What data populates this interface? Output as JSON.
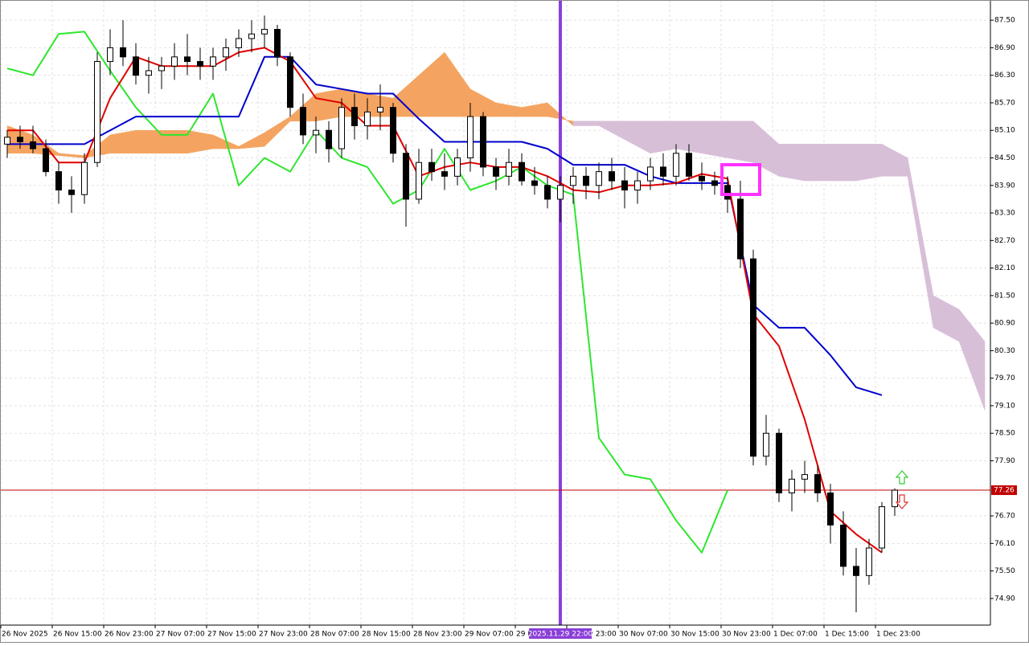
{
  "chart_data": {
    "type": "candlestick",
    "xlim": [
      6.875,
      160.875
    ],
    "ylim": [
      74.32,
      87.94
    ],
    "grid": true,
    "yticks": [
      {
        "value": 87.5,
        "label": "87.50"
      },
      {
        "value": 86.9,
        "label": "86.90"
      },
      {
        "value": 86.3,
        "label": "86.30"
      },
      {
        "value": 85.7,
        "label": "85.70"
      },
      {
        "value": 85.1,
        "label": "85.10"
      },
      {
        "value": 84.5,
        "label": "84.50"
      },
      {
        "value": 83.9,
        "label": "83.90"
      },
      {
        "value": 83.3,
        "label": "83.30"
      },
      {
        "value": 82.7,
        "label": "82.70"
      },
      {
        "value": 82.1,
        "label": "82.10"
      },
      {
        "value": 81.5,
        "label": "81.50"
      },
      {
        "value": 80.9,
        "label": "80.90"
      },
      {
        "value": 80.3,
        "label": "80.30"
      },
      {
        "value": 79.7,
        "label": "79.70"
      },
      {
        "value": 79.1,
        "label": "79.10"
      },
      {
        "value": 78.5,
        "label": "78.50"
      },
      {
        "value": 77.9,
        "label": "77.90"
      },
      {
        "value": 76.7,
        "label": "76.70"
      },
      {
        "value": 76.1,
        "label": "76.10"
      },
      {
        "value": 75.5,
        "label": "75.50"
      },
      {
        "value": 74.9,
        "label": "74.90"
      }
    ],
    "xticks": [
      {
        "value": 7,
        "label": "26 Nov 2025"
      },
      {
        "value": 15,
        "label": "26 Nov 15:00"
      },
      {
        "value": 23,
        "label": "26 Nov 23:00"
      },
      {
        "value": 31,
        "label": "27 Nov 07:00"
      },
      {
        "value": 39,
        "label": "27 Nov 15:00"
      },
      {
        "value": 47,
        "label": "27 Nov 23:00"
      },
      {
        "value": 55,
        "label": "28 Nov 07:00"
      },
      {
        "value": 63,
        "label": "28 Nov 15:00"
      },
      {
        "value": 71,
        "label": "28 Nov 23:00"
      },
      {
        "value": 79,
        "label": "29 Nov 07:00"
      },
      {
        "value": 87,
        "label": "29 Nov 15:00"
      },
      {
        "value": 95,
        "label": "29 Nov 23:00"
      },
      {
        "value": 103,
        "label": "30 Nov 07:00"
      },
      {
        "value": 111,
        "label": "30 Nov 15:00"
      },
      {
        "value": 119,
        "label": "30 Nov 23:00"
      },
      {
        "value": 127,
        "label": "1 Dec 07:00"
      },
      {
        "value": 135,
        "label": "1 Dec 15:00"
      },
      {
        "value": 143,
        "label": "1 Dec 23:00"
      }
    ],
    "up_color": "#ffffff",
    "down_color": "#000000",
    "x": [
      8,
      10,
      12,
      14,
      16,
      18,
      20,
      22,
      24,
      26,
      28,
      30,
      32,
      34,
      36,
      38,
      40,
      42,
      44,
      46,
      48,
      50,
      52,
      54,
      56,
      58,
      60,
      62,
      64,
      66,
      68,
      70,
      72,
      74,
      76,
      78,
      80,
      82,
      84,
      86,
      88,
      90,
      92,
      94,
      96,
      98,
      100,
      102,
      104,
      106,
      108,
      110,
      112,
      114,
      116,
      118,
      120,
      122,
      124,
      126,
      128,
      130,
      132,
      134,
      136,
      138,
      140,
      142,
      144,
      146
    ],
    "open": [
      84.8,
      84.95,
      84.85,
      84.7,
      84.2,
      83.8,
      83.7,
      84.4,
      86.6,
      86.9,
      86.7,
      86.3,
      86.4,
      86.5,
      86.7,
      86.6,
      86.5,
      86.7,
      86.9,
      87.1,
      87.2,
      87.3,
      86.7,
      85.6,
      85.0,
      85.1,
      84.7,
      85.6,
      85.2,
      85.5,
      85.6,
      84.6,
      83.6,
      84.4,
      84.2,
      84.1,
      84.5,
      85.4,
      84.3,
      84.1,
      84.4,
      84.0,
      83.9,
      83.6,
      83.9,
      84.1,
      83.9,
      84.2,
      84.0,
      83.8,
      84.0,
      84.3,
      84.1,
      84.6,
      84.1,
      84.0,
      83.9,
      83.6,
      82.3,
      78.0,
      78.5,
      77.2,
      77.5,
      77.6,
      77.2,
      76.5,
      75.6,
      75.4,
      76.0,
      76.9
    ],
    "high": [
      85.1,
      85.2,
      85.2,
      84.9,
      84.4,
      84.1,
      84.6,
      86.8,
      87.3,
      87.5,
      87.0,
      86.7,
      86.7,
      87.0,
      87.2,
      86.9,
      86.9,
      87.1,
      87.3,
      87.5,
      87.6,
      87.4,
      86.8,
      85.9,
      85.4,
      85.3,
      85.8,
      85.9,
      85.8,
      86.1,
      85.7,
      84.8,
      84.7,
      84.7,
      84.6,
      84.7,
      85.7,
      85.5,
      84.5,
      84.7,
      84.6,
      84.3,
      84.1,
      84.1,
      84.3,
      84.3,
      84.4,
      84.5,
      84.3,
      84.2,
      84.5,
      84.6,
      84.8,
      84.8,
      84.4,
      84.2,
      84.1,
      84.0,
      82.5,
      78.9,
      78.6,
      77.7,
      77.9,
      77.8,
      77.4,
      76.8,
      76.0,
      76.2,
      77.0,
      77.3
    ],
    "low": [
      84.5,
      84.7,
      84.6,
      84.1,
      83.5,
      83.3,
      83.5,
      84.3,
      86.3,
      86.5,
      86.1,
      85.9,
      86.0,
      86.2,
      86.3,
      86.2,
      86.2,
      86.4,
      86.7,
      86.8,
      86.9,
      86.5,
      85.4,
      84.8,
      84.6,
      84.4,
      84.5,
      84.9,
      84.9,
      85.1,
      84.4,
      83.0,
      83.5,
      84.0,
      83.8,
      83.9,
      84.2,
      84.1,
      83.8,
      83.9,
      83.9,
      83.7,
      83.4,
      83.1,
      83.5,
      83.6,
      83.6,
      83.8,
      83.4,
      83.5,
      83.8,
      83.9,
      83.9,
      84.0,
      83.8,
      83.7,
      83.3,
      82.1,
      77.8,
      77.8,
      77.0,
      76.8,
      77.2,
      77.0,
      76.1,
      75.4,
      74.6,
      75.2,
      75.9,
      76.7
    ],
    "close": [
      84.95,
      84.85,
      84.7,
      84.2,
      83.8,
      83.7,
      84.4,
      86.6,
      86.9,
      86.7,
      86.3,
      86.4,
      86.5,
      86.7,
      86.6,
      86.5,
      86.7,
      86.9,
      87.1,
      87.2,
      87.3,
      86.7,
      85.6,
      85.0,
      85.1,
      84.7,
      85.6,
      85.2,
      85.5,
      85.6,
      84.6,
      83.6,
      84.4,
      84.2,
      84.1,
      84.5,
      85.4,
      84.3,
      84.1,
      84.4,
      84.0,
      83.9,
      83.6,
      83.9,
      84.1,
      83.9,
      84.2,
      84.0,
      83.8,
      84.0,
      84.3,
      84.1,
      84.6,
      84.1,
      84.0,
      83.9,
      83.6,
      82.3,
      78.0,
      78.5,
      77.2,
      77.5,
      77.6,
      77.2,
      76.5,
      75.6,
      75.4,
      76.0,
      76.9,
      77.26
    ],
    "lines": [
      {
        "color": "#2ee62e",
        "x": [
          8,
          12,
          16,
          20,
          24,
          28,
          32,
          36,
          40,
          44,
          48,
          52,
          56,
          60,
          64,
          68,
          72,
          76,
          80,
          84,
          88,
          92,
          96,
          100,
          104,
          108,
          112,
          116,
          120
        ],
        "values": [
          86.45,
          86.3,
          87.2,
          87.25,
          86.4,
          85.6,
          85.0,
          85.0,
          85.9,
          83.9,
          84.5,
          84.2,
          85.1,
          84.5,
          84.3,
          83.5,
          83.8,
          84.7,
          83.8,
          84.0,
          84.3,
          83.9,
          83.7,
          78.4,
          77.6,
          77.5,
          76.6,
          75.9,
          77.26
        ]
      },
      {
        "color": "#0000cc",
        "x": [
          8,
          12,
          16,
          20,
          24,
          28,
          32,
          36,
          40,
          44,
          48,
          52,
          56,
          60,
          64,
          68,
          72,
          76,
          80,
          84,
          88,
          92,
          96,
          100,
          104,
          108,
          112,
          116,
          120,
          124,
          128,
          132,
          136,
          140,
          144
        ],
        "values": [
          84.8,
          84.8,
          84.8,
          84.8,
          85.1,
          85.4,
          85.4,
          85.4,
          85.4,
          85.4,
          86.7,
          86.7,
          86.1,
          86.0,
          85.9,
          85.9,
          85.35,
          84.85,
          84.85,
          84.85,
          84.85,
          84.7,
          84.35,
          84.35,
          84.35,
          84.1,
          83.95,
          83.95,
          83.95,
          81.3,
          80.8,
          80.8,
          80.2,
          79.5,
          79.33
        ]
      },
      {
        "color": "#e00000",
        "x": [
          8,
          12,
          16,
          20,
          24,
          28,
          32,
          36,
          40,
          44,
          48,
          52,
          56,
          60,
          64,
          68,
          72,
          76,
          80,
          84,
          88,
          92,
          96,
          100,
          104,
          108,
          112,
          116,
          120,
          124,
          128,
          132,
          136,
          140,
          144
        ],
        "values": [
          85.1,
          85.1,
          84.4,
          84.4,
          85.8,
          86.7,
          86.5,
          86.5,
          86.5,
          86.8,
          86.9,
          86.6,
          85.8,
          85.7,
          85.2,
          85.2,
          84.1,
          84.3,
          84.4,
          84.3,
          84.3,
          84.1,
          83.8,
          83.75,
          83.9,
          83.9,
          83.95,
          84.15,
          84.05,
          81.1,
          80.4,
          78.8,
          76.8,
          76.3,
          75.9
        ]
      }
    ],
    "cloud": {
      "up_color": "#f4a460",
      "down_color": "#d8bfd8",
      "x": [
        8,
        12,
        16,
        20,
        24,
        28,
        32,
        36,
        40,
        44,
        48,
        52,
        56,
        60,
        64,
        68,
        72,
        76,
        80,
        84,
        88,
        92,
        96,
        100,
        104,
        108,
        112,
        116,
        120,
        124,
        128,
        132,
        136,
        140,
        144,
        148,
        152,
        156,
        160
      ],
      "span_a": [
        85.2,
        85.0,
        84.6,
        84.55,
        85.0,
        85.1,
        85.1,
        85.1,
        85.0,
        84.75,
        85.05,
        85.4,
        85.9,
        86.0,
        85.9,
        85.8,
        86.3,
        86.8,
        86.0,
        85.7,
        85.6,
        85.7,
        85.2,
        85.2,
        84.9,
        84.6,
        84.7,
        84.6,
        84.5,
        84.4,
        84.1,
        84.0,
        84.0,
        84.0,
        84.1,
        84.1,
        80.8,
        80.5,
        79.0
      ],
      "span_b": [
        84.6,
        84.6,
        84.55,
        84.5,
        84.6,
        84.6,
        84.6,
        84.6,
        84.7,
        84.7,
        84.75,
        85.3,
        85.3,
        85.4,
        85.4,
        85.4,
        85.4,
        85.4,
        85.4,
        85.4,
        85.4,
        85.4,
        85.3,
        85.3,
        85.3,
        85.3,
        85.3,
        85.3,
        85.3,
        85.3,
        84.8,
        84.8,
        84.8,
        84.8,
        84.8,
        84.5,
        81.5,
        81.2,
        80.5
      ]
    },
    "price_line": 77.26,
    "price_line_color": "#c00000",
    "marker": {
      "x": 94,
      "label": "2025.11.29 22:00",
      "color": "#8a3fd8"
    }
  }
}
